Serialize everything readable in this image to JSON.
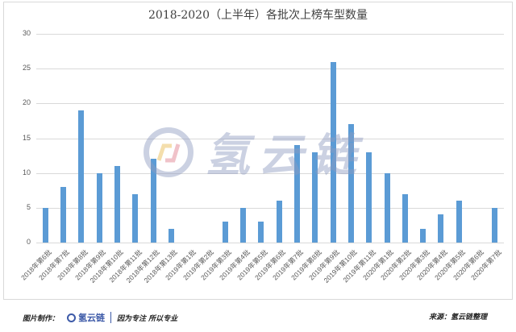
{
  "title": "2018-2020（上半年）各批次上榜车型数量",
  "watermark": {
    "text": "氢云链",
    "icon": "hydrogen-cloud-chain-logo-icon"
  },
  "footer": {
    "made_by_label": "图片制作：",
    "logo_text": "氢云链",
    "slogan": "因为专注  所以专业",
    "source": "来源：氢云链整理"
  },
  "colors": {
    "bar": "#5b9bd5",
    "grid": "#d9d9d9",
    "text": "#595959"
  },
  "chart_data": {
    "type": "bar",
    "title": "2018-2020（上半年）各批次上榜车型数量",
    "xlabel": "",
    "ylabel": "",
    "ylim": [
      0,
      30
    ],
    "yticks": [
      0,
      5,
      10,
      15,
      20,
      25,
      30
    ],
    "grid": true,
    "legend": null,
    "categories": [
      "2018年第6批",
      "2018年第7批",
      "2018年第8批",
      "2018年第9批",
      "2018年第10批",
      "2018年第11批",
      "2018年第12批",
      "2018年第13批",
      "2019年第1批",
      "2019年第2批",
      "2019年第3批",
      "2019年第4批",
      "2019年第5批",
      "2019年第6批",
      "2019年第7批",
      "2019年第8批",
      "2019年第9批",
      "2019年第10批",
      "2019年第11批",
      "2020年第1批",
      "2020年第2批",
      "2020年第3批",
      "2020年第4批",
      "2020年第5批",
      "2020年第6批",
      "2020年第7批"
    ],
    "values": [
      5,
      8,
      19,
      10,
      11,
      7,
      12,
      2,
      0,
      0,
      3,
      5,
      3,
      6,
      14,
      13,
      26,
      17,
      13,
      10,
      7,
      2,
      4,
      6,
      0,
      5
    ]
  }
}
